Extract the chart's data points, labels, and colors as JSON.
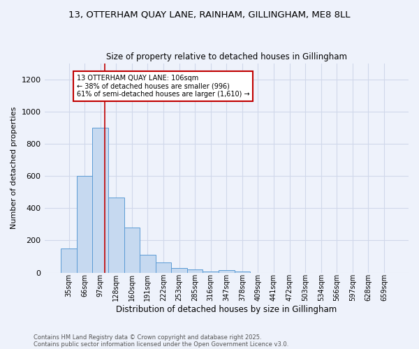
{
  "title_line1": "13, OTTERHAM QUAY LANE, RAINHAM, GILLINGHAM, ME8 8LL",
  "title_line2": "Size of property relative to detached houses in Gillingham",
  "xlabel": "Distribution of detached houses by size in Gillingham",
  "ylabel": "Number of detached properties",
  "categories": [
    "35sqm",
    "66sqm",
    "97sqm",
    "128sqm",
    "160sqm",
    "191sqm",
    "222sqm",
    "253sqm",
    "285sqm",
    "316sqm",
    "347sqm",
    "378sqm",
    "409sqm",
    "441sqm",
    "472sqm",
    "503sqm",
    "534sqm",
    "566sqm",
    "597sqm",
    "628sqm",
    "659sqm"
  ],
  "values": [
    150,
    600,
    900,
    465,
    280,
    110,
    65,
    30,
    20,
    8,
    15,
    5,
    0,
    0,
    0,
    0,
    0,
    0,
    0,
    0,
    0
  ],
  "bar_color": "#c6d9f0",
  "bar_edge_color": "#5b9bd5",
  "property_line_x": 2.3,
  "annotation_text": "13 OTTERHAM QUAY LANE: 106sqm\n← 38% of detached houses are smaller (996)\n61% of semi-detached houses are larger (1,610) →",
  "annotation_box_color": "#ffffff",
  "annotation_box_edge": "#c00000",
  "vline_color": "#c00000",
  "ylim": [
    0,
    1300
  ],
  "yticks": [
    0,
    200,
    400,
    600,
    800,
    1000,
    1200
  ],
  "grid_color": "#d0d8ea",
  "background_color": "#eef2fb",
  "footer_line1": "Contains HM Land Registry data © Crown copyright and database right 2025.",
  "footer_line2": "Contains public sector information licensed under the Open Government Licence v3.0."
}
